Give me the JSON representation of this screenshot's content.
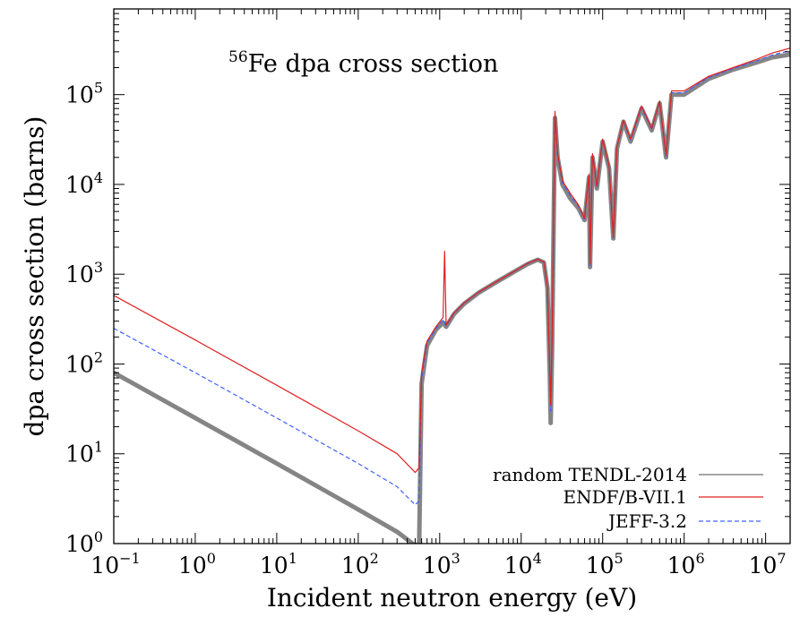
{
  "chart_data": {
    "type": "line",
    "title": "Fe dpa cross section",
    "title_superscript": "56",
    "xlabel": "Incident neutron energy (eV)",
    "ylabel": "dpa cross section (barns)",
    "x_scale": "log",
    "y_scale": "log",
    "xlim": [
      0.1,
      20000000
    ],
    "ylim": [
      1,
      900000
    ],
    "x_ticks": [
      {
        "value": 0.1,
        "base": "10",
        "exp": "−1"
      },
      {
        "value": 1,
        "base": "10",
        "exp": "0"
      },
      {
        "value": 10,
        "base": "10",
        "exp": "1"
      },
      {
        "value": 100,
        "base": "10",
        "exp": "2"
      },
      {
        "value": 1000,
        "base": "10",
        "exp": "3"
      },
      {
        "value": 10000,
        "base": "10",
        "exp": "4"
      },
      {
        "value": 100000,
        "base": "10",
        "exp": "5"
      },
      {
        "value": 1000000,
        "base": "10",
        "exp": "6"
      },
      {
        "value": 10000000,
        "base": "10",
        "exp": "7"
      }
    ],
    "y_ticks": [
      {
        "value": 1,
        "base": "10",
        "exp": "0"
      },
      {
        "value": 10,
        "base": "10",
        "exp": "1"
      },
      {
        "value": 100,
        "base": "10",
        "exp": "2"
      },
      {
        "value": 1000,
        "base": "10",
        "exp": "3"
      },
      {
        "value": 10000,
        "base": "10",
        "exp": "4"
      },
      {
        "value": 100000,
        "base": "10",
        "exp": "5"
      }
    ],
    "grid": false,
    "legend_position": "bottom-right",
    "series": [
      {
        "name": "random TENDL-2014",
        "color": "#707070",
        "style": "band",
        "points": [
          [
            0.1,
            80
          ],
          [
            1,
            25
          ],
          [
            10,
            7.8
          ],
          [
            100,
            2.4
          ],
          [
            300,
            1.35
          ],
          [
            500,
            0.95
          ],
          [
            560,
            1
          ],
          [
            600,
            60
          ],
          [
            700,
            160
          ],
          [
            900,
            240
          ],
          [
            1100,
            290
          ],
          [
            1200,
            260
          ],
          [
            1500,
            360
          ],
          [
            2000,
            470
          ],
          [
            3000,
            620
          ],
          [
            5000,
            820
          ],
          [
            8000,
            1050
          ],
          [
            12000,
            1300
          ],
          [
            16000,
            1450
          ],
          [
            19000,
            1350
          ],
          [
            21000,
            700
          ],
          [
            22500,
            70
          ],
          [
            23000,
            22
          ],
          [
            24000,
            150
          ],
          [
            26000,
            55000
          ],
          [
            28000,
            20000
          ],
          [
            32000,
            10000
          ],
          [
            40000,
            7000
          ],
          [
            50000,
            5500
          ],
          [
            60000,
            4000
          ],
          [
            65000,
            8000
          ],
          [
            68000,
            12000
          ],
          [
            70000,
            1200
          ],
          [
            75000,
            20000
          ],
          [
            85000,
            9000
          ],
          [
            100000,
            30000
          ],
          [
            120000,
            15000
          ],
          [
            135000,
            2500
          ],
          [
            150000,
            25000
          ],
          [
            180000,
            50000
          ],
          [
            220000,
            30000
          ],
          [
            300000,
            70000
          ],
          [
            400000,
            40000
          ],
          [
            500000,
            80000
          ],
          [
            600000,
            20000
          ],
          [
            700000,
            100000
          ],
          [
            1000000,
            100000
          ],
          [
            2000000,
            150000
          ],
          [
            4000000,
            190000
          ],
          [
            8000000,
            230000
          ],
          [
            12000000,
            260000
          ],
          [
            20000000,
            280000
          ]
        ]
      },
      {
        "name": "ENDF/B-VII.1",
        "color": "#e02020",
        "style": "solid",
        "points": [
          [
            0.1,
            580
          ],
          [
            1,
            185
          ],
          [
            10,
            58
          ],
          [
            100,
            18
          ],
          [
            300,
            10
          ],
          [
            500,
            6.2
          ],
          [
            560,
            7
          ],
          [
            600,
            80
          ],
          [
            700,
            180
          ],
          [
            900,
            260
          ],
          [
            1100,
            330
          ],
          [
            1150,
            1800
          ],
          [
            1200,
            270
          ],
          [
            1500,
            370
          ],
          [
            2000,
            480
          ],
          [
            3000,
            630
          ],
          [
            5000,
            830
          ],
          [
            8000,
            1060
          ],
          [
            12000,
            1320
          ],
          [
            16000,
            1470
          ],
          [
            19000,
            1370
          ],
          [
            21000,
            720
          ],
          [
            22500,
            80
          ],
          [
            23000,
            35
          ],
          [
            24000,
            200
          ],
          [
            26000,
            65000
          ],
          [
            28000,
            22000
          ],
          [
            32000,
            11000
          ],
          [
            40000,
            8000
          ],
          [
            50000,
            6000
          ],
          [
            60000,
            4200
          ],
          [
            65000,
            9000
          ],
          [
            68000,
            13000
          ],
          [
            70000,
            1300
          ],
          [
            75000,
            22000
          ],
          [
            85000,
            9500
          ],
          [
            100000,
            32000
          ],
          [
            120000,
            16000
          ],
          [
            135000,
            2600
          ],
          [
            150000,
            26000
          ],
          [
            180000,
            52000
          ],
          [
            220000,
            32000
          ],
          [
            300000,
            75000
          ],
          [
            400000,
            42000
          ],
          [
            500000,
            85000
          ],
          [
            600000,
            21000
          ],
          [
            700000,
            110000
          ],
          [
            1000000,
            110000
          ],
          [
            2000000,
            160000
          ],
          [
            4000000,
            200000
          ],
          [
            8000000,
            250000
          ],
          [
            12000000,
            290000
          ],
          [
            20000000,
            330000
          ]
        ]
      },
      {
        "name": "JEFF-3.2",
        "color": "#4060ff",
        "style": "dashed",
        "points": [
          [
            0.1,
            250
          ],
          [
            1,
            80
          ],
          [
            10,
            25
          ],
          [
            100,
            7.8
          ],
          [
            300,
            4.3
          ],
          [
            500,
            2.7
          ],
          [
            560,
            3
          ],
          [
            600,
            70
          ],
          [
            700,
            170
          ],
          [
            900,
            250
          ],
          [
            1100,
            310
          ],
          [
            1200,
            265
          ],
          [
            1500,
            365
          ],
          [
            2000,
            475
          ],
          [
            3000,
            625
          ],
          [
            5000,
            825
          ],
          [
            8000,
            1055
          ],
          [
            12000,
            1310
          ],
          [
            16000,
            1460
          ],
          [
            19000,
            1360
          ],
          [
            21000,
            710
          ],
          [
            22500,
            75
          ],
          [
            23000,
            30
          ],
          [
            24000,
            180
          ],
          [
            26000,
            60000
          ],
          [
            28000,
            21000
          ],
          [
            32000,
            10500
          ],
          [
            40000,
            7500
          ],
          [
            50000,
            5800
          ],
          [
            60000,
            4100
          ],
          [
            65000,
            8500
          ],
          [
            68000,
            12500
          ],
          [
            70000,
            1250
          ],
          [
            75000,
            21000
          ],
          [
            85000,
            9200
          ],
          [
            100000,
            31000
          ],
          [
            120000,
            15500
          ],
          [
            135000,
            2550
          ],
          [
            150000,
            25500
          ],
          [
            180000,
            51000
          ],
          [
            220000,
            31000
          ],
          [
            300000,
            72000
          ],
          [
            400000,
            41000
          ],
          [
            500000,
            82000
          ],
          [
            600000,
            20500
          ],
          [
            700000,
            105000
          ],
          [
            1000000,
            105000
          ],
          [
            2000000,
            155000
          ],
          [
            4000000,
            195000
          ],
          [
            8000000,
            240000
          ],
          [
            12000000,
            275000
          ],
          [
            20000000,
            310000
          ]
        ]
      }
    ]
  }
}
